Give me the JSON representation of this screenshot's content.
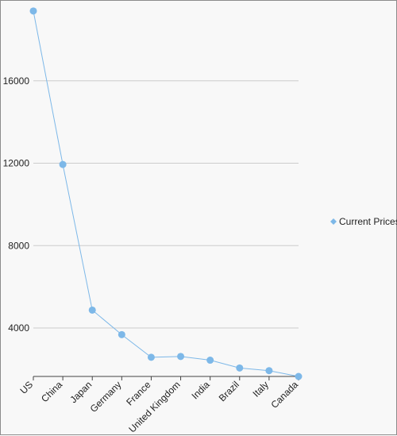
{
  "chart_data": {
    "type": "line",
    "title": "",
    "xlabel": "",
    "ylabel": "",
    "categories": [
      "US",
      "China",
      "Japan",
      "Germany",
      "France",
      "United Kingdom",
      "India",
      "Brazil",
      "Italy",
      "Canada"
    ],
    "series": [
      {
        "name": "Current Prices",
        "values": [
          19390,
          11940,
          4870,
          3680,
          2580,
          2620,
          2440,
          2060,
          1930,
          1650
        ]
      }
    ],
    "y_ticks": [
      "4000",
      "8000",
      "12000",
      "16000"
    ],
    "ylim": [
      1650,
      19500
    ],
    "grid": true,
    "legend_position": "right",
    "colors": {
      "series": "#7db8e8",
      "grid": "#cccccc",
      "axis": "#444444"
    }
  }
}
